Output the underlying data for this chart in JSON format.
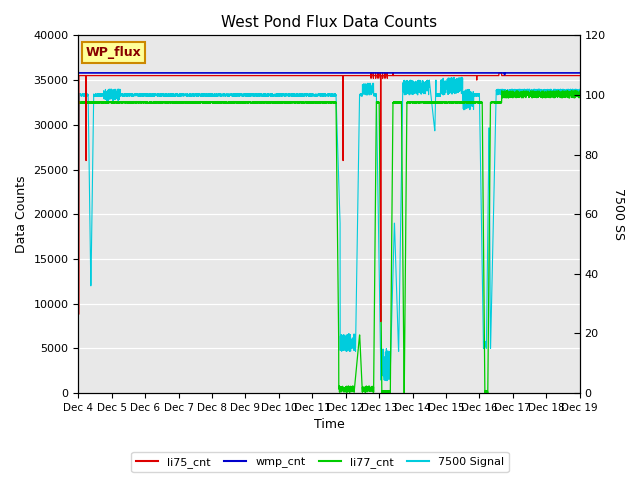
{
  "title": "West Pond Flux Data Counts",
  "xlabel": "Time",
  "ylabel_left": "Data Counts",
  "ylabel_right": "7500 SS",
  "xlim_days": [
    4,
    19
  ],
  "ylim_left": [
    0,
    40000
  ],
  "ylim_right": [
    0,
    120
  ],
  "yticks_left": [
    0,
    5000,
    10000,
    15000,
    20000,
    25000,
    30000,
    35000,
    40000
  ],
  "yticks_right": [
    0,
    20,
    40,
    60,
    80,
    100,
    120
  ],
  "xtick_labels": [
    "Dec 4",
    "Dec 5",
    "Dec 6",
    "Dec 7",
    "Dec 8",
    "Dec 9",
    "Dec 10",
    "Dec 11",
    "Dec 12",
    "Dec 13",
    "Dec 14",
    "Dec 15",
    "Dec 16",
    "Dec 17",
    "Dec 18",
    "Dec 19"
  ],
  "bg_color": "#e8e8e8",
  "fig_color": "#ffffff",
  "line_colors": {
    "li75_cnt": "#dd0000",
    "wmp_cnt": "#0000cc",
    "li77_cnt": "#00cc00",
    "signal": "#00ccdd"
  },
  "legend_labels": [
    "li75_cnt",
    "wmp_cnt",
    "li77_cnt",
    "7500 Signal"
  ],
  "wp_flux_label": "WP_flux",
  "wp_flux_bg": "#ffff99",
  "wp_flux_border": "#cc8800",
  "grid_color": "#ffffff",
  "scale": 333.33
}
